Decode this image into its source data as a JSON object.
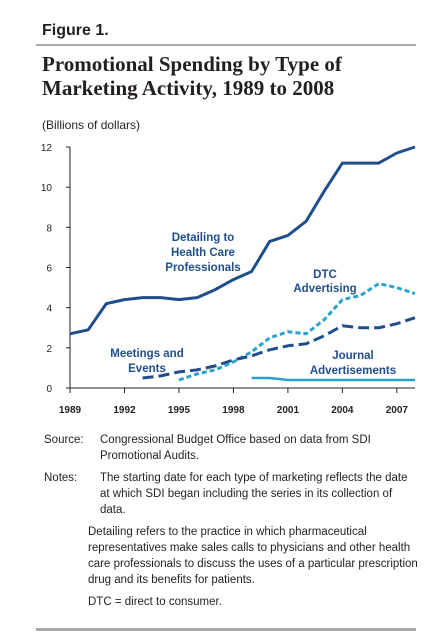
{
  "figure_label": "Figure 1.",
  "title": "Promotional Spending by Type of Marketing Activity, 1989 to 2008",
  "unit_label": "(Billions of dollars)",
  "colors": {
    "detailing": "#1f4e8c",
    "dtc": "#2aa3cc",
    "meetings": "#1f4e8c",
    "journal": "#2aa3cc",
    "rule": "#a7a9ac",
    "text": "#231f20"
  },
  "chart_data": {
    "type": "line",
    "xlim": [
      1989,
      2008
    ],
    "ylim": [
      0,
      12
    ],
    "x_ticks": [
      "1989",
      "1992",
      "1995",
      "1998",
      "2001",
      "2004",
      "2007"
    ],
    "y_ticks": [
      "0",
      "2",
      "4",
      "6",
      "8",
      "10",
      "12"
    ],
    "grid": false,
    "series": [
      {
        "name": "Detailing to Health Care Professionals",
        "style": "solid",
        "x": [
          1989,
          1990,
          1991,
          1992,
          1993,
          1994,
          1995,
          1996,
          1997,
          1998,
          1999,
          2000,
          2001,
          2002,
          2003,
          2004,
          2005,
          2006,
          2007,
          2008
        ],
        "y": [
          2.7,
          2.9,
          4.2,
          4.4,
          4.5,
          4.5,
          4.4,
          4.5,
          4.9,
          5.4,
          5.8,
          7.3,
          7.6,
          8.3,
          9.8,
          11.2,
          11.2,
          11.2,
          11.7,
          12.0
        ]
      },
      {
        "name": "DTC Advertising",
        "style": "short-dash",
        "x": [
          1995,
          1996,
          1997,
          1998,
          1999,
          2000,
          2001,
          2002,
          2003,
          2004,
          2005,
          2006,
          2007,
          2008
        ],
        "y": [
          0.4,
          0.7,
          0.9,
          1.3,
          1.8,
          2.5,
          2.8,
          2.7,
          3.4,
          4.4,
          4.6,
          5.2,
          5.0,
          4.7
        ]
      },
      {
        "name": "Meetings and Events",
        "style": "long-dash",
        "x": [
          1993,
          1994,
          1995,
          1996,
          1997,
          1998,
          1999,
          2000,
          2001,
          2002,
          2003,
          2004,
          2005,
          2006,
          2007,
          2008
        ],
        "y": [
          0.5,
          0.6,
          0.8,
          0.9,
          1.1,
          1.4,
          1.6,
          1.9,
          2.1,
          2.2,
          2.6,
          3.1,
          3.0,
          3.0,
          3.2,
          3.5
        ]
      },
      {
        "name": "Journal Advertisements",
        "style": "solid-light",
        "x": [
          1999,
          2000,
          2001,
          2002,
          2003,
          2004,
          2005,
          2006,
          2007,
          2008
        ],
        "y": [
          0.5,
          0.5,
          0.4,
          0.4,
          0.4,
          0.4,
          0.4,
          0.4,
          0.4,
          0.4
        ]
      }
    ],
    "annotations": [
      {
        "lines": [
          "Detailing to",
          "Health Care",
          "Professionals"
        ]
      },
      {
        "lines": [
          "DTC",
          "Advertising"
        ]
      },
      {
        "lines": [
          "Meetings and",
          "Events"
        ]
      },
      {
        "lines": [
          "Journal",
          "Advertisements"
        ]
      }
    ]
  },
  "notes": {
    "source_label": "Source:",
    "source_text": "Congressional Budget Office based on data from SDI Promotional Audits.",
    "notes_label": "Notes:",
    "note1": "The starting date for each type of marketing reflects the date at which SDI began including the series in its collection of data.",
    "note2": "Detailing refers to the practice in which pharmaceutical representatives make sales calls to physicians and other health care professionals to discuss the uses of a particular prescription drug and its benefits for patients.",
    "note3": "DTC = direct to consumer."
  }
}
